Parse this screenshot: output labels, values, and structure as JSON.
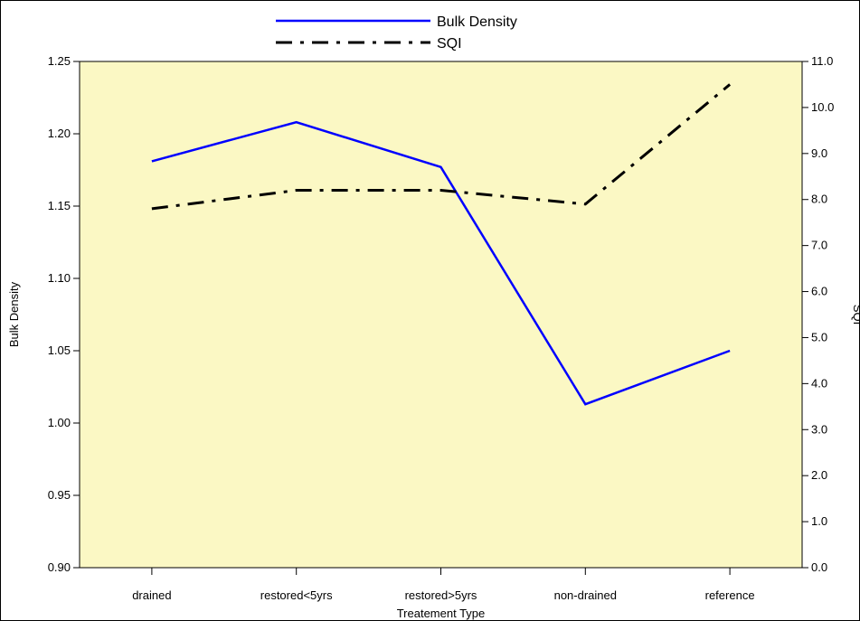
{
  "chart_data": {
    "type": "line",
    "categories": [
      "drained",
      "restored<5yrs",
      "restored>5yrs",
      "non-drained",
      "reference"
    ],
    "xlabel": "Treatement Type",
    "ylabel": "Bulk Density",
    "y2label": "SQI",
    "ylim": [
      0.9,
      1.25
    ],
    "y2lim": [
      0.0,
      11.0
    ],
    "yticks": [
      "0.90",
      "0.95",
      "1.00",
      "1.05",
      "1.10",
      "1.15",
      "1.20",
      "1.25"
    ],
    "y2ticks": [
      "0.0",
      "1.0",
      "2.0",
      "3.0",
      "4.0",
      "5.0",
      "6.0",
      "7.0",
      "8.0",
      "9.0",
      "10.0",
      "11.0"
    ],
    "series": [
      {
        "name": "Bulk Density",
        "axis": "left",
        "color": "#0000ff",
        "style": "solid",
        "values": [
          1.181,
          1.208,
          1.177,
          1.013,
          1.05
        ]
      },
      {
        "name": "SQI",
        "axis": "right",
        "color": "#000000",
        "style": "dash-dot",
        "values": [
          7.8,
          8.2,
          8.2,
          7.9,
          10.5
        ]
      }
    ],
    "plot_background": "#fbf8c4",
    "grid": false,
    "legend_position": "top-center"
  }
}
